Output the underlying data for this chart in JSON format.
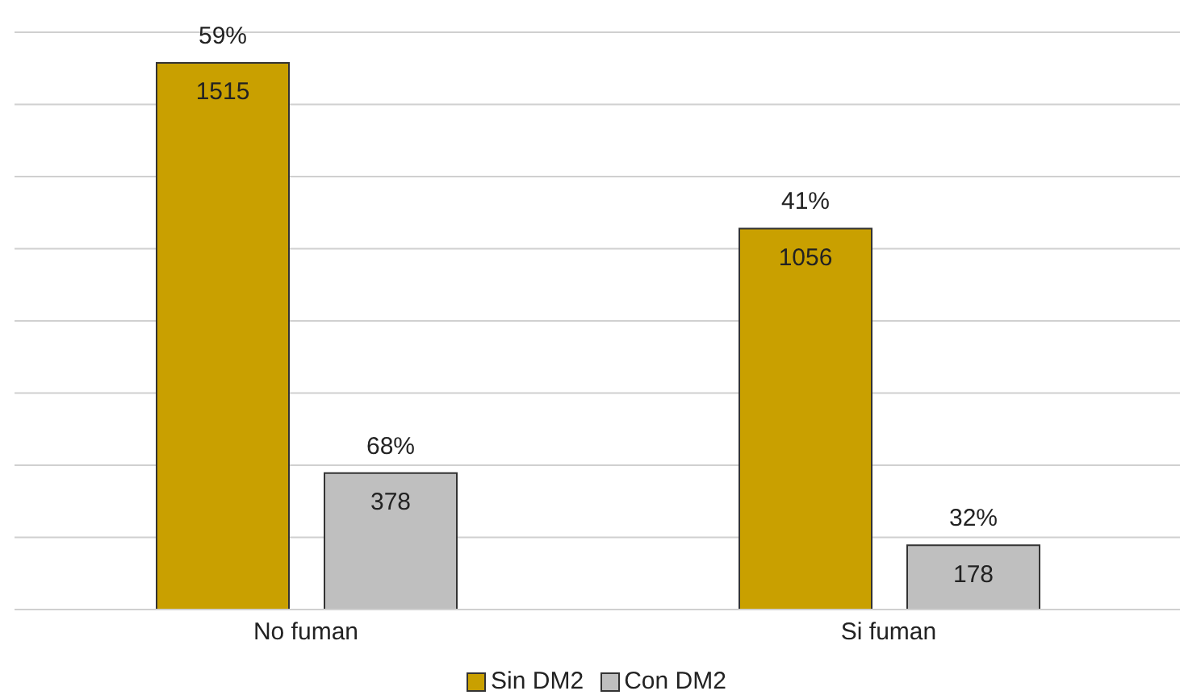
{
  "chart_data": {
    "type": "bar",
    "categories": [
      "No fuman",
      "Si fuman"
    ],
    "series": [
      {
        "name": "Sin DM2",
        "color": "#c9a000",
        "values": [
          1515,
          1056
        ]
      },
      {
        "name": "Con DM2",
        "color": "#bfbfbf",
        "values": [
          378,
          178
        ]
      }
    ],
    "data_labels": true,
    "annotations": [
      "59%",
      "41%",
      "68%",
      "32%"
    ],
    "ylim": [
      0,
      1600
    ],
    "yticks": [
      {
        "value": 0,
        "label": null
      },
      {
        "value": 200,
        "label": null
      },
      {
        "value": 400,
        "label": null
      },
      {
        "value": 600,
        "label": null
      },
      {
        "value": 800,
        "label": null
      },
      {
        "value": 1000,
        "label": null
      },
      {
        "value": 1200,
        "label": null
      },
      {
        "value": 1400,
        "label": null
      },
      {
        "value": 1600,
        "label": null
      }
    ],
    "tick_labels": "x",
    "grid": "y",
    "legend": "bottom"
  }
}
